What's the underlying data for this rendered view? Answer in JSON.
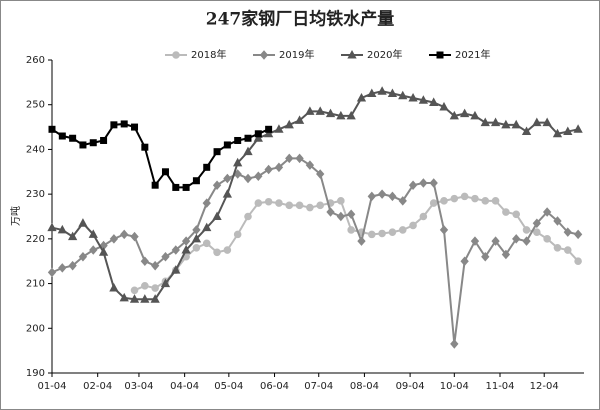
{
  "chart_data": {
    "type": "line",
    "title": "247家钢厂日均铁水产量",
    "y_label": "万吨",
    "x": [
      0,
      7,
      14,
      21,
      28,
      35,
      42,
      49,
      56,
      63,
      70,
      77,
      84,
      91,
      98,
      105,
      112,
      119,
      126,
      133,
      140,
      147,
      154,
      161,
      168,
      175,
      182,
      189,
      196,
      203,
      210,
      217,
      224,
      231,
      238,
      245,
      252,
      259,
      266,
      273,
      280,
      287,
      294,
      301,
      308,
      315,
      322,
      329,
      336,
      343,
      350,
      357
    ],
    "xlim": [
      0,
      361
    ],
    "xticks": [
      {
        "value": 0,
        "label": "01-04"
      },
      {
        "value": 31,
        "label": "02-04"
      },
      {
        "value": 59,
        "label": "03-04"
      },
      {
        "value": 90,
        "label": "04-04"
      },
      {
        "value": 120,
        "label": "05-04"
      },
      {
        "value": 151,
        "label": "06-04"
      },
      {
        "value": 181,
        "label": "07-04"
      },
      {
        "value": 212,
        "label": "08-04"
      },
      {
        "value": 243,
        "label": "09-04"
      },
      {
        "value": 273,
        "label": "10-04"
      },
      {
        "value": 304,
        "label": "11-04"
      },
      {
        "value": 334,
        "label": "12-04"
      }
    ],
    "ylim": [
      190,
      260
    ],
    "yticks": [
      190,
      200,
      210,
      220,
      230,
      240,
      250,
      260
    ],
    "series": [
      {
        "name": "2018年",
        "color": "#bbbbbb",
        "marker": "circle",
        "values": [
          null,
          null,
          null,
          null,
          null,
          null,
          null,
          null,
          208.5,
          209.5,
          209,
          210.5,
          213,
          216,
          218,
          219,
          217,
          217.5,
          221,
          225,
          228,
          228.3,
          228,
          227.5,
          227.5,
          227,
          227.5,
          228,
          228.5,
          222,
          221.5,
          221,
          221.2,
          221.5,
          222,
          223,
          225,
          228,
          228.5,
          229,
          229.5,
          229,
          228.5,
          228.5,
          226,
          225.5,
          222,
          221.5,
          220,
          218,
          217.5,
          215
        ]
      },
      {
        "name": "2019年",
        "color": "#888888",
        "marker": "diamond",
        "values": [
          212.5,
          213.5,
          214,
          216,
          217.5,
          218.5,
          220,
          221,
          220.5,
          215,
          214,
          216,
          217.5,
          219.5,
          222,
          228,
          232,
          233.5,
          234.5,
          233.5,
          234,
          235.5,
          236,
          238,
          238,
          236.5,
          234.5,
          226,
          225,
          225.5,
          219.5,
          229.5,
          230,
          229.5,
          228.5,
          232,
          232.5,
          232.5,
          222,
          196.5,
          215,
          219.5,
          216,
          219.5,
          216.5,
          220,
          219.5,
          223.5,
          226,
          224,
          221.5,
          221
        ]
      },
      {
        "name": "2020年",
        "color": "#555555",
        "marker": "triangle",
        "values": [
          222.5,
          222,
          220.5,
          223.5,
          221,
          217,
          209,
          206.8,
          206.5,
          206.5,
          206.5,
          210,
          213,
          217.5,
          220,
          222.5,
          225,
          230,
          237,
          239.5,
          242.5,
          243.5,
          244.5,
          245.5,
          246.5,
          248.5,
          248.5,
          248,
          247.5,
          247.5,
          251.5,
          252.5,
          253,
          252.5,
          252,
          251.5,
          251,
          250.5,
          249.5,
          247.5,
          248,
          247.5,
          246,
          246,
          245.5,
          245.5,
          244,
          246,
          246,
          243.5,
          244,
          244.5
        ]
      },
      {
        "name": "2021年",
        "color": "#000000",
        "marker": "square",
        "values": [
          244.5,
          243,
          242.5,
          241,
          241.5,
          242,
          245.5,
          245.7,
          245,
          240.5,
          232,
          235,
          231.5,
          231.5,
          233,
          236,
          239.5,
          241,
          242,
          242.5,
          243.5,
          244.5,
          null,
          null,
          null,
          null,
          null,
          null,
          null,
          null,
          null,
          null,
          null,
          null,
          null,
          null,
          null,
          null,
          null,
          null,
          null,
          null,
          null,
          null,
          null,
          null,
          null,
          null,
          null,
          null,
          null,
          null
        ]
      }
    ]
  }
}
